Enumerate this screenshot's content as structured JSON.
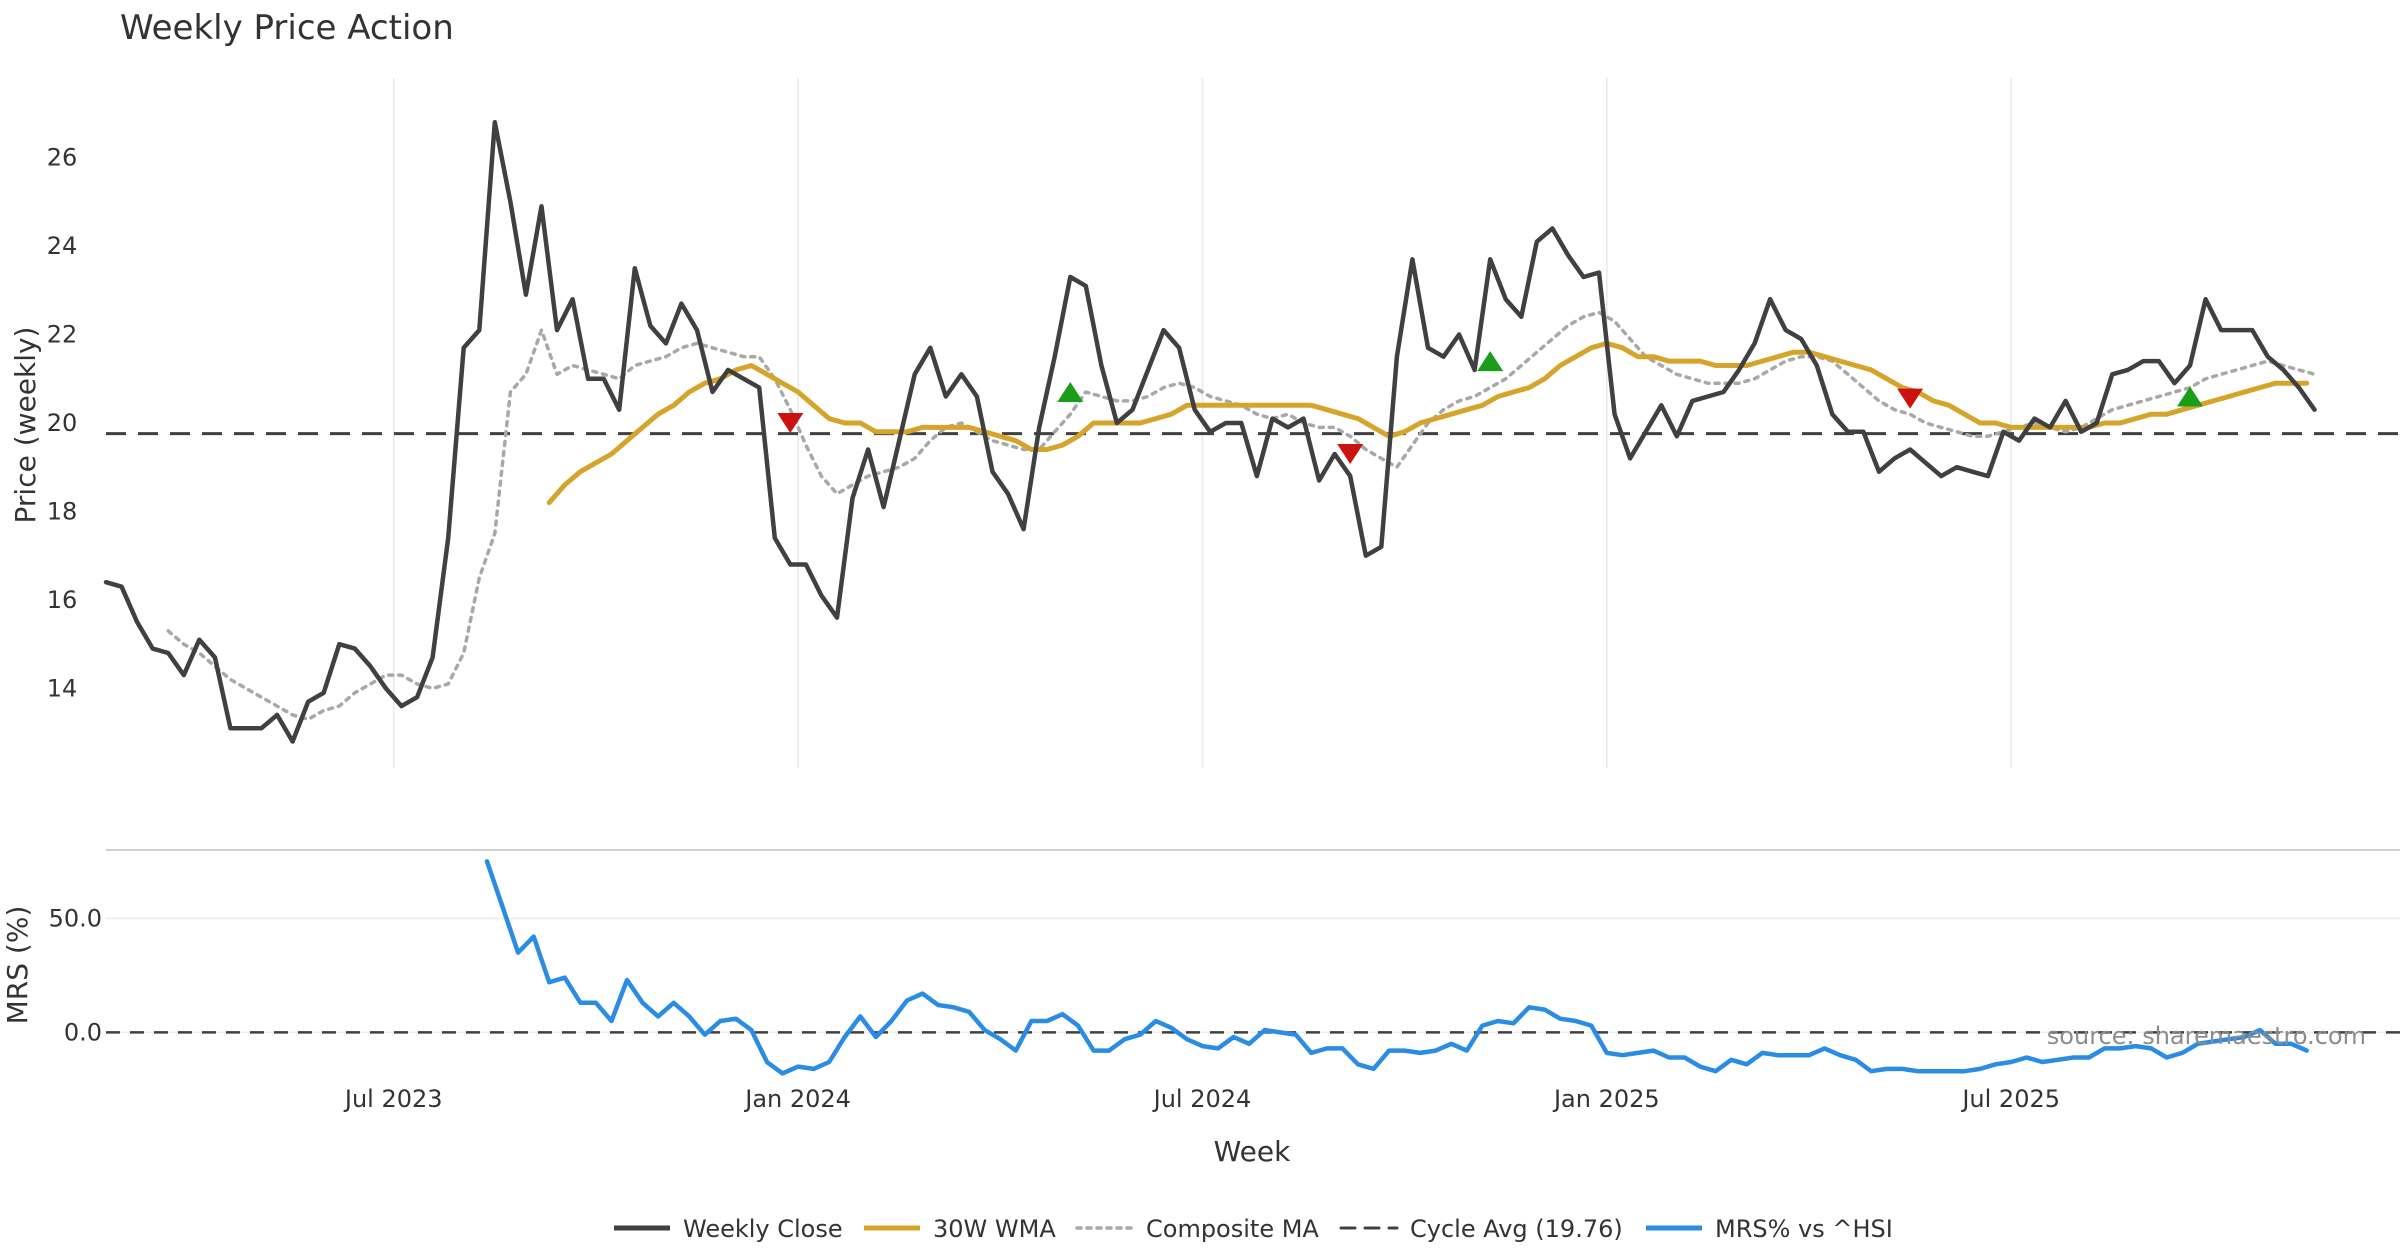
{
  "chart_data": {
    "type": "line",
    "title": "Weekly Price Action",
    "xlabel": "Week",
    "x_ticks": [
      "Jul 2023",
      "Jan 2024",
      "Jul 2024",
      "Jan 2025",
      "Jul 2025"
    ],
    "x_tick_weeks": [
      27,
      53,
      79,
      105,
      131
    ],
    "x_range": [
      8.5,
      156
    ],
    "price_panel": {
      "ylabel": "Price (weekly)",
      "ylim": [
        12.2,
        27.8
      ],
      "yticks": [
        14,
        16,
        18,
        20,
        22,
        24,
        26
      ],
      "grid": "vertical",
      "cycle_avg": 19.76
    },
    "mrs_panel": {
      "ylabel": "MRS (%)",
      "ylim": [
        -20,
        80
      ],
      "yticks": [
        "50.0",
        "0.0"
      ],
      "ytick_values": [
        50,
        0
      ]
    },
    "source_note": "source: sharemaestro.com",
    "colors": {
      "close": "#404040",
      "wma": "#d4a52a",
      "composite": "#a8a8a8",
      "cycle": "#404040",
      "mrs": "#2b8ce3",
      "buy": "#1a9e1a",
      "sell": "#cc1111"
    },
    "series": [
      {
        "name": "Weekly Close",
        "start_week": 8.5,
        "values": [
          16.4,
          16.3,
          15.5,
          14.9,
          14.8,
          14.3,
          15.1,
          14.7,
          13.1,
          13.1,
          13.1,
          13.4,
          12.8,
          13.7,
          13.9,
          15.0,
          14.9,
          14.5,
          14.0,
          13.6,
          13.8,
          14.7,
          17.4,
          21.7,
          22.1,
          26.8,
          25.0,
          22.9,
          24.9,
          22.1,
          22.8,
          21.0,
          21.0,
          20.3,
          23.5,
          22.2,
          21.8,
          22.7,
          22.1,
          20.7,
          21.2,
          21.0,
          20.8,
          17.4,
          16.8,
          16.8,
          16.1,
          15.6,
          18.3,
          19.4,
          18.1,
          19.6,
          21.1,
          21.7,
          20.6,
          21.1,
          20.6,
          18.9,
          18.4,
          17.6,
          19.9,
          21.5,
          23.3,
          23.1,
          21.3,
          20.0,
          20.3,
          21.2,
          22.1,
          21.7,
          20.3,
          19.8,
          20.0,
          20.0,
          18.8,
          20.1,
          19.9,
          20.1,
          18.7,
          19.3,
          18.8,
          17.0,
          17.2,
          21.5,
          23.7,
          21.7,
          21.5,
          22.0,
          21.2,
          23.7,
          22.8,
          22.4,
          24.1,
          24.4,
          23.8,
          23.3,
          23.4,
          20.2,
          19.2,
          19.8,
          20.4,
          19.7,
          20.5,
          20.6,
          20.7,
          21.2,
          21.8,
          22.8,
          22.1,
          21.9,
          21.3,
          20.2,
          19.8,
          19.8,
          18.9,
          19.2,
          19.4,
          19.1,
          18.8,
          19.0,
          18.9,
          18.8,
          19.8,
          19.6,
          20.1,
          19.9,
          20.5,
          19.8,
          20.0,
          21.1,
          21.2,
          21.4,
          21.4,
          20.9,
          21.3,
          22.8,
          22.1,
          22.1,
          22.1,
          21.5,
          21.2,
          20.8,
          20.3
        ]
      },
      {
        "name": "30W WMA",
        "start_week": 37,
        "values": [
          18.2,
          18.6,
          18.9,
          19.1,
          19.3,
          19.6,
          19.9,
          20.2,
          20.4,
          20.7,
          20.9,
          21.0,
          21.2,
          21.3,
          21.1,
          20.9,
          20.7,
          20.4,
          20.1,
          20.0,
          20.0,
          19.8,
          19.8,
          19.8,
          19.9,
          19.9,
          19.9,
          19.9,
          19.8,
          19.7,
          19.6,
          19.4,
          19.4,
          19.5,
          19.7,
          20.0,
          20.0,
          20.0,
          20.0,
          20.1,
          20.2,
          20.4,
          20.4,
          20.4,
          20.4,
          20.4,
          20.4,
          20.4,
          20.4,
          20.4,
          20.3,
          20.2,
          20.1,
          19.9,
          19.7,
          19.8,
          20.0,
          20.1,
          20.2,
          20.3,
          20.4,
          20.6,
          20.7,
          20.8,
          21.0,
          21.3,
          21.5,
          21.7,
          21.8,
          21.7,
          21.5,
          21.5,
          21.4,
          21.4,
          21.4,
          21.3,
          21.3,
          21.3,
          21.4,
          21.5,
          21.6,
          21.6,
          21.5,
          21.4,
          21.3,
          21.2,
          21.0,
          20.8,
          20.7,
          20.5,
          20.4,
          20.2,
          20.0,
          20.0,
          19.9,
          19.9,
          19.9,
          19.9,
          19.9,
          19.9,
          20.0,
          20.0,
          20.1,
          20.2,
          20.2,
          20.3,
          20.4,
          20.5,
          20.6,
          20.7,
          20.8,
          20.9,
          20.9,
          20.9
        ]
      },
      {
        "name": "Composite MA",
        "start_week": 12.5,
        "values": [
          15.3,
          15.0,
          14.8,
          14.5,
          14.2,
          14.0,
          13.8,
          13.6,
          13.4,
          13.3,
          13.5,
          13.6,
          13.9,
          14.1,
          14.3,
          14.3,
          14.1,
          14.0,
          14.1,
          14.8,
          16.5,
          17.5,
          20.7,
          21.1,
          22.1,
          21.1,
          21.3,
          21.2,
          21.1,
          21.0,
          21.3,
          21.4,
          21.5,
          21.7,
          21.8,
          21.7,
          21.6,
          21.5,
          21.5,
          21.0,
          20.3,
          19.5,
          18.8,
          18.4,
          18.6,
          18.8,
          18.9,
          19.0,
          19.2,
          19.6,
          19.9,
          20.0,
          19.8,
          19.6,
          19.5,
          19.4,
          19.4,
          19.8,
          20.2,
          20.7,
          20.6,
          20.5,
          20.5,
          20.6,
          20.8,
          20.9,
          20.8,
          20.6,
          20.5,
          20.4,
          20.2,
          20.1,
          20.2,
          20.0,
          19.9,
          19.9,
          19.7,
          19.4,
          19.2,
          19.0,
          19.5,
          20.0,
          20.3,
          20.5,
          20.6,
          20.8,
          21.0,
          21.3,
          21.6,
          21.9,
          22.2,
          22.4,
          22.5,
          22.3,
          21.9,
          21.5,
          21.3,
          21.1,
          21.0,
          20.9,
          20.9,
          20.9,
          21.0,
          21.2,
          21.4,
          21.5,
          21.5,
          21.4,
          21.1,
          20.8,
          20.5,
          20.3,
          20.2,
          20.0,
          19.9,
          19.8,
          19.7,
          19.7,
          19.8,
          19.9,
          20.0,
          19.9,
          19.8,
          19.9,
          20.1,
          20.3,
          20.4,
          20.5,
          20.6,
          20.7,
          20.8,
          21.0,
          21.1,
          21.2,
          21.3,
          21.4,
          21.3,
          21.2,
          21.1
        ]
      },
      {
        "name": "Cycle Avg (19.76)",
        "value": 19.76
      },
      {
        "name": "MRS% vs ^HSI",
        "start_week": 33,
        "values": [
          75,
          55,
          35,
          42,
          22,
          24,
          13,
          13,
          5,
          23,
          13,
          7,
          13,
          7,
          -1,
          5,
          6,
          1,
          -13,
          -18,
          -15,
          -16,
          -13,
          -2,
          7,
          -2,
          5,
          14,
          17,
          12,
          11,
          9,
          1,
          -3,
          -8,
          5,
          5,
          8,
          3,
          -8,
          -8,
          -3,
          -1,
          5,
          2,
          -3,
          -6,
          -7,
          -2,
          -5,
          1,
          0,
          -1,
          -9,
          -7,
          -7,
          -14,
          -16,
          -8,
          -8,
          -9,
          -8,
          -5,
          -8,
          3,
          5,
          4,
          11,
          10,
          6,
          5,
          3,
          -9,
          -10,
          -9,
          -8,
          -11,
          -11,
          -15,
          -17,
          -12,
          -14,
          -9,
          -10,
          -10,
          -10,
          -7,
          -10,
          -12,
          -17,
          -16,
          -16,
          -17,
          -17,
          -17,
          -17,
          -16,
          -14,
          -13,
          -11,
          -13,
          -12,
          -11,
          -11,
          -7,
          -7,
          -6,
          -7,
          -11,
          -9,
          -5,
          -4,
          -3,
          -2,
          1,
          -5,
          -5,
          -8
        ]
      }
    ],
    "signals": [
      {
        "type": "sell",
        "week": 52.5,
        "price": 20.0
      },
      {
        "type": "buy",
        "week": 70.5,
        "price": 20.7
      },
      {
        "type": "sell",
        "week": 88.5,
        "price": 19.3
      },
      {
        "type": "buy",
        "week": 97.5,
        "price": 21.4
      },
      {
        "type": "sell",
        "week": 124.5,
        "price": 20.55
      },
      {
        "type": "buy",
        "week": 142.5,
        "price": 20.6
      }
    ],
    "legend": {
      "position": "bottom-center",
      "entries": [
        "Weekly Close",
        "30W WMA",
        "Composite MA",
        "Cycle Avg (19.76)",
        "MRS% vs ^HSI"
      ]
    }
  }
}
